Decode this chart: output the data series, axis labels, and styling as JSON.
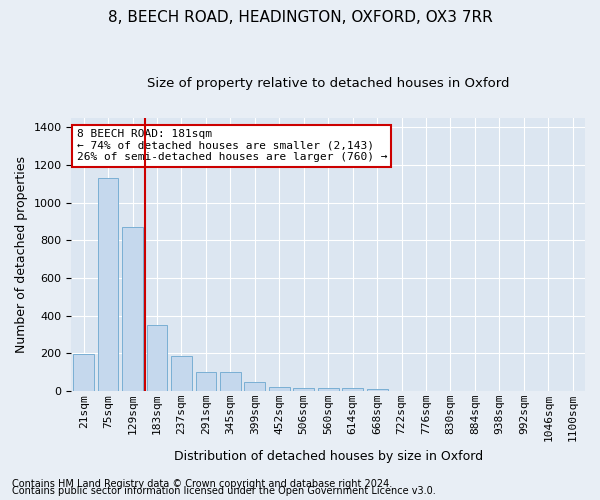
{
  "title": "8, BEECH ROAD, HEADINGTON, OXFORD, OX3 7RR",
  "subtitle": "Size of property relative to detached houses in Oxford",
  "xlabel": "Distribution of detached houses by size in Oxford",
  "ylabel": "Number of detached properties",
  "footnote1": "Contains HM Land Registry data © Crown copyright and database right 2024.",
  "footnote2": "Contains public sector information licensed under the Open Government Licence v3.0.",
  "categories": [
    "21sqm",
    "75sqm",
    "129sqm",
    "183sqm",
    "237sqm",
    "291sqm",
    "345sqm",
    "399sqm",
    "452sqm",
    "506sqm",
    "560sqm",
    "614sqm",
    "668sqm",
    "722sqm",
    "776sqm",
    "830sqm",
    "884sqm",
    "938sqm",
    "992sqm",
    "1046sqm",
    "1100sqm"
  ],
  "values": [
    195,
    1130,
    870,
    350,
    185,
    100,
    100,
    50,
    20,
    15,
    15,
    15,
    10,
    0,
    0,
    0,
    0,
    0,
    0,
    0,
    0
  ],
  "bar_color": "#c5d8ed",
  "bar_edge_color": "#7aafd4",
  "vline_x_index": 2.5,
  "vline_color": "#cc0000",
  "annotation_title": "8 BEECH ROAD: 181sqm",
  "annotation_line2": "← 74% of detached houses are smaller (2,143)",
  "annotation_line3": "26% of semi-detached houses are larger (760) →",
  "annotation_box_color": "#ffffff",
  "annotation_box_edgecolor": "#cc0000",
  "ylim": [
    0,
    1450
  ],
  "background_color": "#e8eef5",
  "plot_bg_color": "#dce6f1",
  "grid_color": "#ffffff",
  "title_fontsize": 11,
  "subtitle_fontsize": 9.5,
  "axis_label_fontsize": 9,
  "tick_fontsize": 8,
  "annotation_fontsize": 8,
  "footnote_fontsize": 7
}
